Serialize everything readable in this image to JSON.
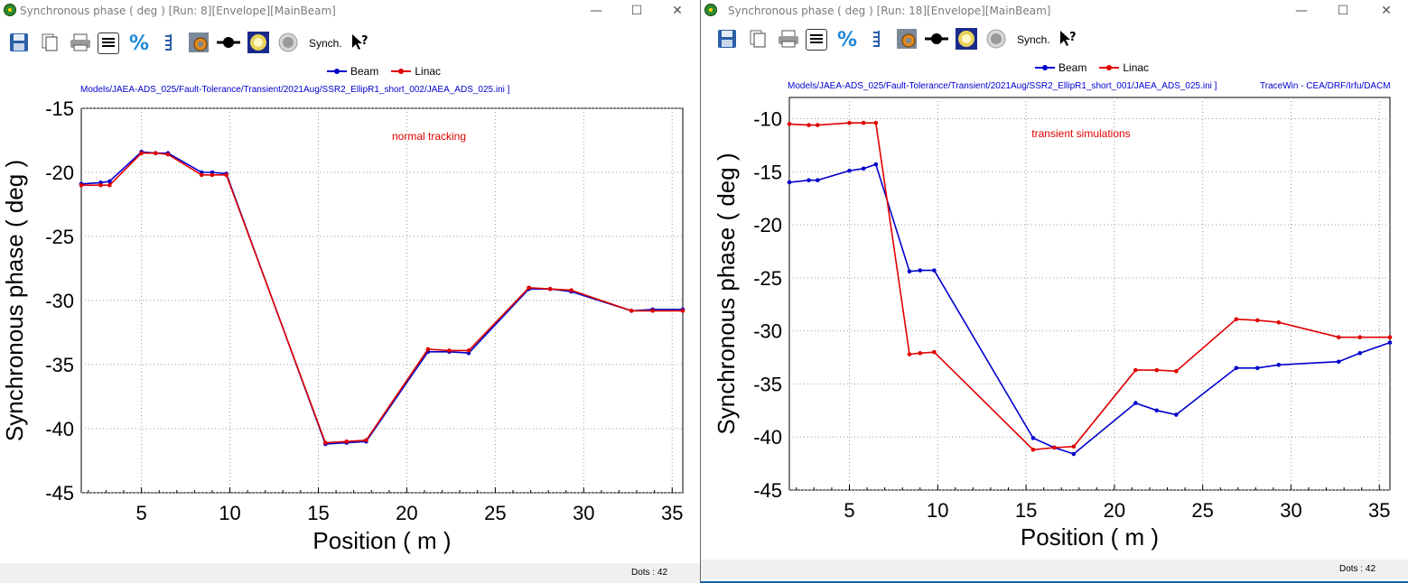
{
  "windows": [
    {
      "title": "Synchronous phase ( deg ) [Run: 8][Envelope][MainBeam]",
      "toolbar": {
        "synch_label": "Synch."
      },
      "legend": [
        {
          "name": "Beam",
          "color": "#0000cc"
        },
        {
          "name": "Linac",
          "color": "#e00000"
        }
      ],
      "path": "Models/JAEA-ADS_025/Fault-Tolerance/Transient/2021Aug/SSR2_EllipR1_short_002/JAEA_ADS_025.ini ]",
      "credit": "",
      "annotation": "normal tracking",
      "status": "Dots : 42",
      "chart_data": {
        "type": "line",
        "xlabel": "Position ( m )",
        "ylabel": "Synchronous phase ( deg )",
        "xlim": [
          1.6,
          35.6
        ],
        "ylim": [
          -45,
          -15
        ],
        "xticks": [
          5,
          10,
          15,
          20,
          25,
          30,
          35
        ],
        "yticks": [
          -15,
          -20,
          -25,
          -30,
          -35,
          -40,
          -45
        ],
        "grid": true,
        "series": [
          {
            "name": "Beam",
            "color": "#0000cc",
            "x": [
              1.6,
              2.7,
              3.2,
              5.0,
              5.8,
              6.5,
              8.4,
              9.0,
              9.8,
              15.4,
              16.6,
              17.7,
              21.2,
              22.4,
              23.5,
              26.9,
              28.1,
              29.3,
              32.7,
              33.9,
              35.6
            ],
            "y": [
              -20.9,
              -20.8,
              -20.7,
              -18.4,
              -18.5,
              -18.5,
              -20.0,
              -20.0,
              -20.1,
              -41.2,
              -41.1,
              -41.0,
              -34.0,
              -34.0,
              -34.1,
              -29.1,
              -29.1,
              -29.3,
              -30.8,
              -30.7,
              -30.7
            ]
          },
          {
            "name": "Linac",
            "color": "#e00000",
            "x": [
              1.6,
              2.7,
              3.2,
              5.0,
              5.8,
              6.5,
              8.4,
              9.0,
              9.8,
              15.4,
              16.6,
              17.7,
              21.2,
              22.4,
              23.5,
              26.9,
              28.1,
              29.3,
              32.7,
              33.9,
              35.6
            ],
            "y": [
              -21.0,
              -21.0,
              -21.0,
              -18.5,
              -18.5,
              -18.6,
              -20.2,
              -20.2,
              -20.2,
              -41.1,
              -41.0,
              -40.9,
              -33.8,
              -33.9,
              -33.9,
              -29.0,
              -29.1,
              -29.2,
              -30.8,
              -30.8,
              -30.8
            ]
          }
        ]
      }
    },
    {
      "title": "Synchronous phase ( deg ) [Run: 18][Envelope][MainBeam]",
      "toolbar": {
        "synch_label": "Synch."
      },
      "legend": [
        {
          "name": "Beam",
          "color": "#0000cc"
        },
        {
          "name": "Linac",
          "color": "#e00000"
        }
      ],
      "path": "Models/JAEA-ADS_025/Fault-Tolerance/Transient/2021Aug/SSR2_EllipR1_short_001/JAEA_ADS_025.ini ]",
      "credit": "TraceWin - CEA/DRF/Irfu/DACM",
      "annotation": "transient simulations",
      "status": "Dots : 42",
      "chart_data": {
        "type": "line",
        "xlabel": "Position ( m )",
        "ylabel": "Synchronous phase ( deg )",
        "xlim": [
          1.6,
          35.6
        ],
        "ylim": [
          -45,
          -8
        ],
        "xticks": [
          5,
          10,
          15,
          20,
          25,
          30,
          35
        ],
        "yticks": [
          -10,
          -15,
          -20,
          -25,
          -30,
          -35,
          -40,
          -45
        ],
        "grid": true,
        "series": [
          {
            "name": "Beam",
            "color": "#0000cc",
            "x": [
              1.6,
              2.7,
              3.2,
              5.0,
              5.8,
              6.5,
              8.4,
              9.0,
              9.8,
              15.4,
              16.6,
              17.7,
              21.2,
              22.4,
              23.5,
              26.9,
              28.1,
              29.3,
              32.7,
              33.9,
              35.6
            ],
            "y": [
              -16.0,
              -15.8,
              -15.8,
              -14.9,
              -14.7,
              -14.3,
              -24.4,
              -24.3,
              -24.3,
              -40.1,
              -41.0,
              -41.6,
              -36.8,
              -37.5,
              -37.9,
              -33.5,
              -33.5,
              -33.2,
              -32.9,
              -32.1,
              -31.1
            ]
          },
          {
            "name": "Linac",
            "color": "#e00000",
            "x": [
              1.6,
              2.7,
              3.2,
              5.0,
              5.8,
              6.5,
              8.4,
              9.0,
              9.8,
              15.4,
              16.6,
              17.7,
              21.2,
              22.4,
              23.5,
              26.9,
              28.1,
              29.3,
              32.7,
              33.9,
              35.6
            ],
            "y": [
              -10.5,
              -10.6,
              -10.6,
              -10.4,
              -10.4,
              -10.4,
              -32.2,
              -32.1,
              -32.0,
              -41.2,
              -41.0,
              -40.9,
              -33.7,
              -33.7,
              -33.8,
              -28.9,
              -29.0,
              -29.2,
              -30.6,
              -30.6,
              -30.6
            ]
          }
        ]
      }
    }
  ]
}
